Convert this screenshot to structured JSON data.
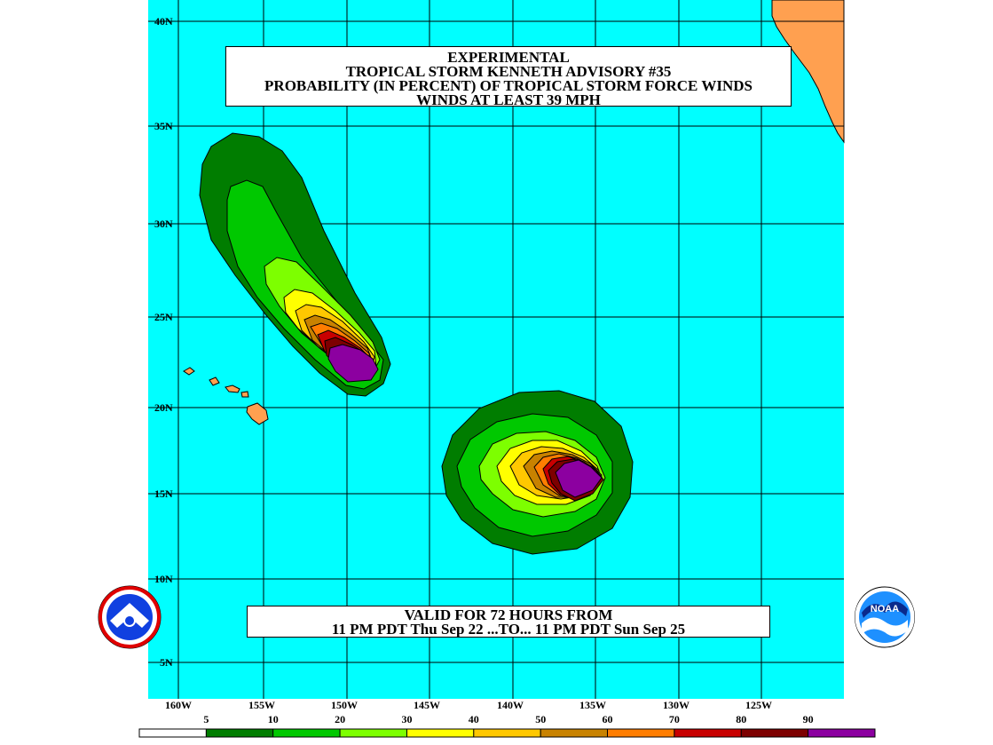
{
  "title": {
    "line1": "EXPERIMENTAL",
    "line2": "TROPICAL STORM KENNETH ADVISORY #35",
    "line3": "PROBABILITY (IN PERCENT) OF TROPICAL STORM FORCE WINDS",
    "line4": "WINDS AT LEAST 39 MPH"
  },
  "validity": {
    "line1": "VALID FOR 72 HOURS FROM",
    "line2": "11 PM PDT Thu Sep 22 ...TO... 11 PM PDT Sun Sep 25"
  },
  "lat_labels": [
    "40N",
    "35N",
    "30N",
    "25N",
    "20N",
    "15N",
    "10N",
    "5N"
  ],
  "lon_labels": [
    "160W",
    "155W",
    "150W",
    "145W",
    "140W",
    "135W",
    "130W",
    "125W"
  ],
  "legend": {
    "values": [
      "5",
      "10",
      "20",
      "30",
      "40",
      "50",
      "60",
      "70",
      "80",
      "90"
    ],
    "colors": [
      "#ffffff",
      "#007d00",
      "#00c800",
      "#7dff00",
      "#ffff00",
      "#ffc800",
      "#c88200",
      "#ff7d00",
      "#c80000",
      "#7d0000",
      "#8c00a0"
    ]
  },
  "colors": {
    "ocean": "#00ffff",
    "land": "#ffa050",
    "grid": "#000000"
  },
  "logos": {
    "left": "nws-logo",
    "right": "noaa-logo",
    "right_text": "NOAA"
  }
}
